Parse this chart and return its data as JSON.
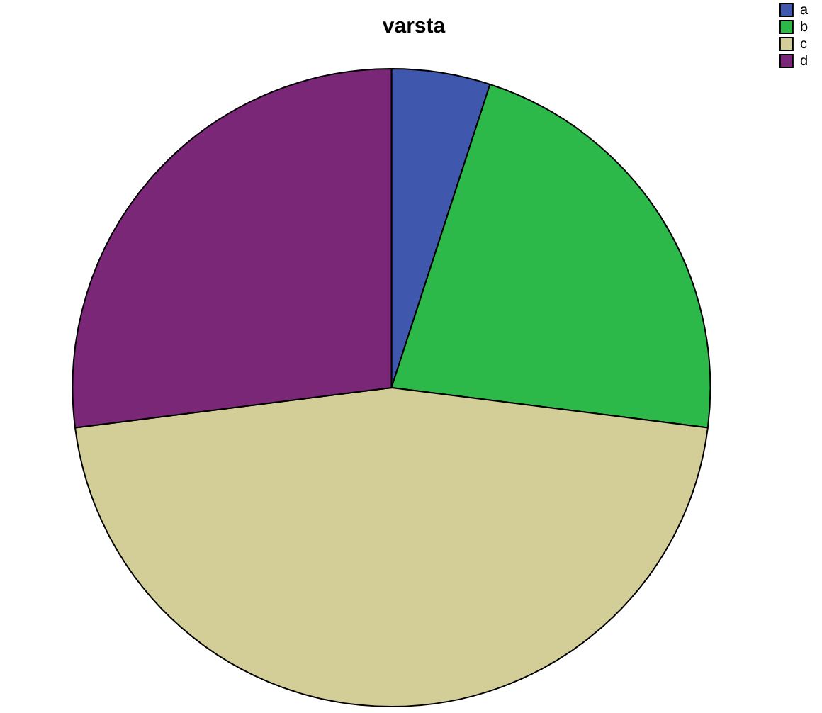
{
  "chart_data": {
    "type": "pie",
    "title": "varsta",
    "categories": [
      "a",
      "b",
      "c",
      "d"
    ],
    "values": [
      5,
      22,
      46,
      27
    ],
    "colors": [
      "#3f58ad",
      "#2db84a",
      "#d3ce97",
      "#7b2778"
    ],
    "legend": "top right"
  }
}
